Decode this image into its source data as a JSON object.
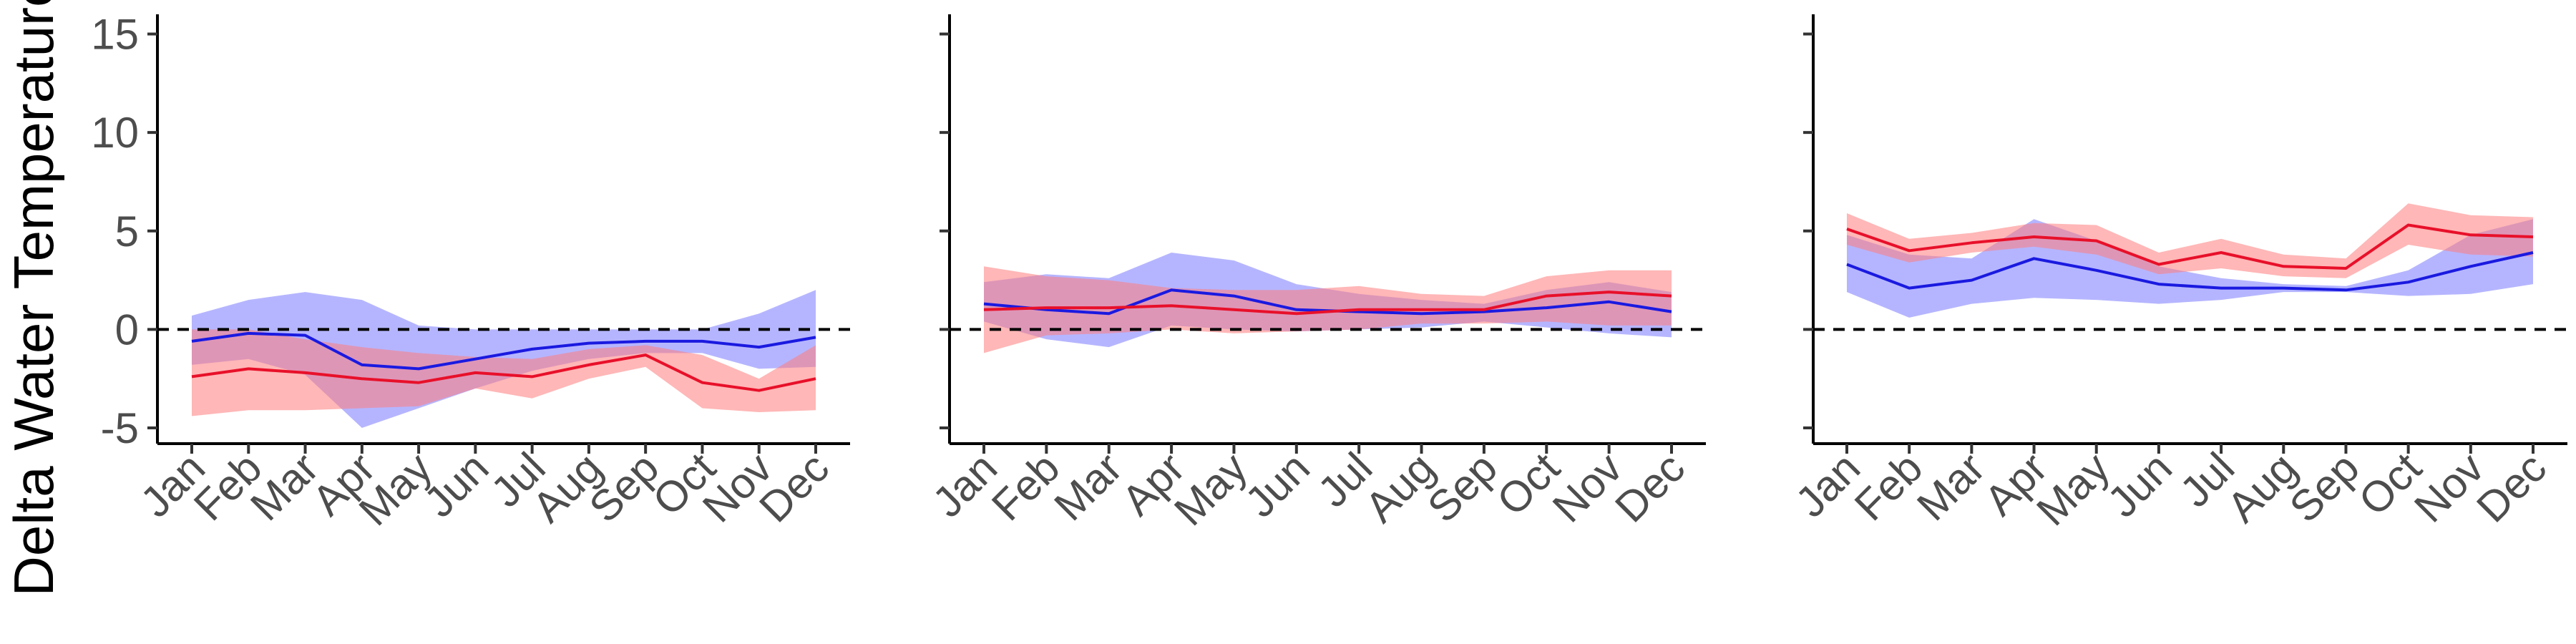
{
  "chart_data": {
    "type": "line",
    "ylabel": "Delta Water Temperature",
    "categories": [
      "Jan",
      "Feb",
      "Mar",
      "Apr",
      "May",
      "Jun",
      "Jul",
      "Aug",
      "Sep",
      "Oct",
      "Nov",
      "Dec"
    ],
    "yticks": [
      -5,
      0,
      5,
      10,
      15
    ],
    "ylim": [
      -5.8,
      16
    ],
    "reference_line": 0,
    "colors": {
      "red_line": "#e8102a",
      "red_band": "#ff7c7c",
      "blue_line": "#1a1ae0",
      "blue_band": "#7878ff"
    },
    "panels": [
      {
        "series": [
          {
            "color": "blue",
            "values": [
              -0.6,
              -0.2,
              -0.3,
              -1.8,
              -2.0,
              -1.5,
              -1.0,
              -0.7,
              -0.6,
              -0.6,
              -0.9,
              -0.4
            ],
            "upper": [
              0.7,
              1.5,
              1.9,
              1.5,
              0.2,
              0.0,
              0.0,
              0.0,
              0.0,
              0.0,
              0.8,
              2.0
            ],
            "lower": [
              -1.8,
              -1.5,
              -2.3,
              -5.0,
              -4.0,
              -3.0,
              -2.1,
              -1.5,
              -1.2,
              -1.2,
              -2.0,
              -1.9
            ]
          },
          {
            "color": "red",
            "values": [
              -2.4,
              -2.0,
              -2.2,
              -2.5,
              -2.7,
              -2.2,
              -2.4,
              -1.8,
              -1.3,
              -2.7,
              -3.1,
              -2.5
            ],
            "upper": [
              0.0,
              0.0,
              -0.5,
              -0.9,
              -1.2,
              -1.4,
              -1.5,
              -1.0,
              -0.8,
              -1.3,
              -2.5,
              -0.8
            ],
            "lower": [
              -4.4,
              -4.1,
              -4.1,
              -4.0,
              -3.9,
              -3.0,
              -3.5,
              -2.5,
              -1.9,
              -4.0,
              -4.2,
              -4.1
            ]
          }
        ]
      },
      {
        "series": [
          {
            "color": "blue",
            "values": [
              1.3,
              1.0,
              0.8,
              2.0,
              1.7,
              1.0,
              0.9,
              0.8,
              0.9,
              1.1,
              1.4,
              0.9
            ],
            "upper": [
              2.4,
              2.8,
              2.6,
              3.9,
              3.5,
              2.3,
              1.8,
              1.5,
              1.3,
              2.0,
              2.4,
              1.9
            ],
            "lower": [
              0.4,
              -0.5,
              -0.9,
              0.2,
              0.0,
              -0.1,
              0.0,
              0.1,
              0.4,
              0.1,
              -0.2,
              -0.4
            ]
          },
          {
            "color": "red",
            "values": [
              1.0,
              1.1,
              1.1,
              1.2,
              1.0,
              0.8,
              1.0,
              1.0,
              1.0,
              1.7,
              1.9,
              1.7
            ],
            "upper": [
              3.2,
              2.7,
              2.5,
              2.1,
              2.0,
              2.0,
              2.2,
              1.8,
              1.7,
              2.7,
              3.0,
              3.0
            ],
            "lower": [
              -1.2,
              -0.3,
              -0.2,
              0.0,
              -0.2,
              -0.1,
              0.0,
              0.3,
              0.3,
              0.4,
              0.2,
              0.2
            ]
          }
        ]
      },
      {
        "series": [
          {
            "color": "blue",
            "values": [
              3.3,
              2.1,
              2.5,
              3.6,
              3.0,
              2.3,
              2.1,
              2.1,
              2.0,
              2.4,
              3.2,
              3.9
            ],
            "upper": [
              4.8,
              3.8,
              3.6,
              5.6,
              4.5,
              3.2,
              2.6,
              2.3,
              2.2,
              3.0,
              4.8,
              5.6
            ],
            "lower": [
              1.9,
              0.6,
              1.3,
              1.6,
              1.5,
              1.3,
              1.5,
              1.9,
              1.9,
              1.7,
              1.8,
              2.3
            ]
          },
          {
            "color": "red",
            "values": [
              5.1,
              4.0,
              4.4,
              4.7,
              4.5,
              3.3,
              3.9,
              3.2,
              3.1,
              5.3,
              4.8,
              4.7
            ],
            "upper": [
              5.9,
              4.6,
              4.9,
              5.4,
              5.3,
              3.9,
              4.6,
              3.8,
              3.6,
              6.4,
              5.8,
              5.7
            ],
            "lower": [
              4.3,
              3.4,
              3.9,
              4.2,
              3.8,
              2.8,
              3.1,
              2.7,
              2.6,
              4.3,
              3.8,
              3.7
            ]
          }
        ]
      }
    ]
  }
}
